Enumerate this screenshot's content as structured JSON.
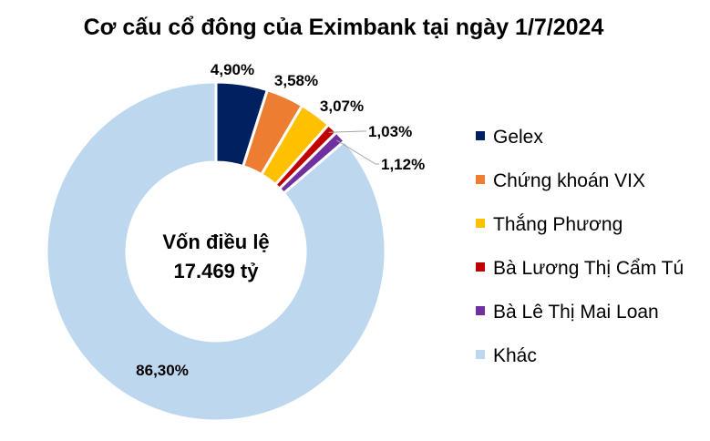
{
  "chart_data": {
    "type": "pie",
    "title": "Cơ cấu cổ đông của Eximbank tại ngày 1/7/2024",
    "center_label": [
      "Vốn điều lệ",
      "17.469 tỷ"
    ],
    "slices": [
      {
        "name": "Gelex",
        "value": 4.9,
        "label": "4,90%",
        "color": "#002060"
      },
      {
        "name": "Chứng khoán VIX",
        "value": 3.58,
        "label": "3,58%",
        "color": "#ED7D31"
      },
      {
        "name": "Thắng Phương",
        "value": 3.07,
        "label": "3,07%",
        "color": "#FFC000"
      },
      {
        "name": "Bà Lương Thị Cẩm Tú",
        "value": 1.03,
        "label": "1,03%",
        "color": "#C00000"
      },
      {
        "name": "Bà Lê Thị Mai Loan",
        "value": 1.12,
        "label": "1,12%",
        "color": "#7030A0"
      },
      {
        "name": "Khác",
        "value": 86.3,
        "label": "86,30%",
        "color": "#BDD7EE"
      }
    ],
    "legend_position": "right"
  }
}
